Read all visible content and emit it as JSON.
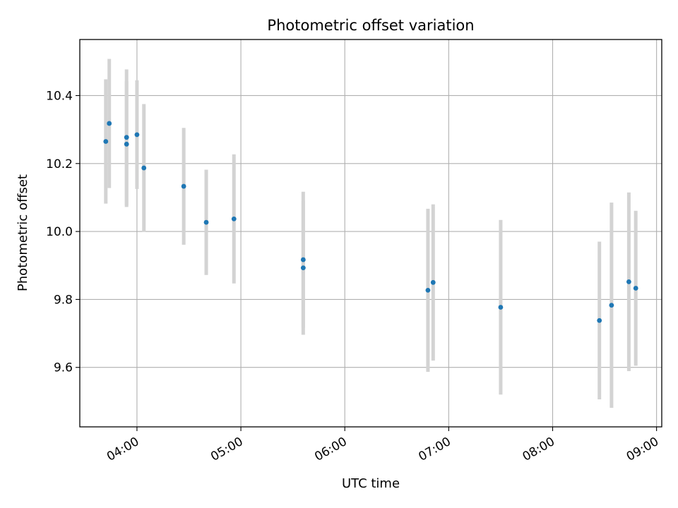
{
  "chart_data": {
    "type": "scatter",
    "title": "Photometric offset variation",
    "xlabel": "UTC time",
    "ylabel": "Photometric offset",
    "xlim": [
      "03:27",
      "09:03"
    ],
    "ylim": [
      9.425,
      10.565
    ],
    "xticks": [
      "04:00",
      "05:00",
      "06:00",
      "07:00",
      "08:00",
      "09:00"
    ],
    "yticks": [
      9.6,
      9.8,
      10.0,
      10.2,
      10.4
    ],
    "grid": true,
    "legend": "none",
    "colors": {
      "point": "#1f77b4",
      "errorbar": "#d3d3d3",
      "grid": "#b0b0b0"
    },
    "series": [
      {
        "points": [
          {
            "x": "03:42",
            "y": 10.265,
            "yerr": 0.183
          },
          {
            "x": "03:44",
            "y": 10.318,
            "yerr": 0.19
          },
          {
            "x": "03:54",
            "y": 10.277,
            "yerr": 0.2
          },
          {
            "x": "03:54",
            "y": 10.257,
            "yerr": 0.185
          },
          {
            "x": "04:00",
            "y": 10.285,
            "yerr": 0.16
          },
          {
            "x": "04:04",
            "y": 10.187,
            "yerr": 0.188
          },
          {
            "x": "04:27",
            "y": 10.133,
            "yerr": 0.172
          },
          {
            "x": "04:40",
            "y": 10.027,
            "yerr": 0.155
          },
          {
            "x": "04:56",
            "y": 10.037,
            "yerr": 0.19
          },
          {
            "x": "05:36",
            "y": 9.917,
            "yerr": 0.2
          },
          {
            "x": "05:36",
            "y": 9.893,
            "yerr": 0.197
          },
          {
            "x": "06:48",
            "y": 9.827,
            "yerr": 0.24
          },
          {
            "x": "06:51",
            "y": 9.85,
            "yerr": 0.23
          },
          {
            "x": "07:30",
            "y": 9.777,
            "yerr": 0.257
          },
          {
            "x": "08:27",
            "y": 9.738,
            "yerr": 0.232
          },
          {
            "x": "08:34",
            "y": 9.783,
            "yerr": 0.302
          },
          {
            "x": "08:44",
            "y": 9.852,
            "yerr": 0.263
          },
          {
            "x": "08:48",
            "y": 9.833,
            "yerr": 0.228
          }
        ]
      }
    ]
  }
}
